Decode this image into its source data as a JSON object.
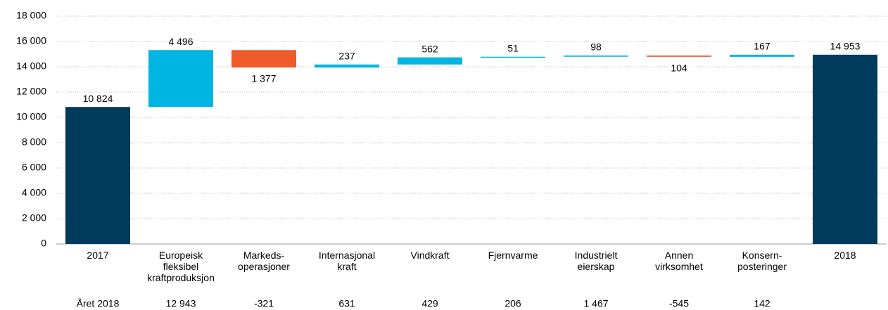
{
  "chart_data": {
    "type": "waterfall",
    "categories": [
      [
        "2017"
      ],
      [
        "Europeisk",
        "fleksibel",
        "kraftproduksjon"
      ],
      [
        "Markeds-",
        "operasjoner"
      ],
      [
        "Internasjonal",
        "kraft"
      ],
      [
        "Vindkraft"
      ],
      [
        "Fjernvarme"
      ],
      [
        "Industrielt",
        "eierskap"
      ],
      [
        "Annen",
        "virksomhet"
      ],
      [
        "Konsern-",
        "posteringer"
      ],
      [
        "2018"
      ]
    ],
    "measure": [
      "absolute",
      "relative",
      "relative",
      "relative",
      "relative",
      "relative",
      "relative",
      "relative",
      "relative",
      "absolute"
    ],
    "values": [
      10824,
      4496,
      -1377,
      237,
      562,
      51,
      98,
      -104,
      167,
      14953
    ],
    "value_labels": [
      "10 824",
      "4 496",
      "1 377",
      "237",
      "562",
      "51",
      "98",
      "104",
      "167",
      "14 953"
    ],
    "colors": {
      "absolute": "#003a5d",
      "increase": "#00b5e2",
      "decrease": "#ef5b2b"
    },
    "ylim": [
      0,
      18000
    ],
    "yticks": [
      0,
      {
        "value": 2000,
        "label": "2 000"
      },
      {
        "value": 4000,
        "label": "4 000"
      },
      {
        "value": 6000,
        "label": "6 000"
      },
      {
        "value": 8000,
        "label": "8 000"
      },
      {
        "value": 10000,
        "label": "10 000"
      },
      {
        "value": 12000,
        "label": "12 000"
      },
      {
        "value": 14000,
        "label": "14 000"
      },
      {
        "value": 16000,
        "label": "16 000"
      },
      {
        "value": 18000,
        "label": "18 000"
      }
    ],
    "grid": true,
    "footer_row": {
      "label": "Året 2018",
      "values": [
        "12 943",
        "-321",
        "631",
        "429",
        "206",
        "1 467",
        "-545",
        "142"
      ]
    }
  }
}
